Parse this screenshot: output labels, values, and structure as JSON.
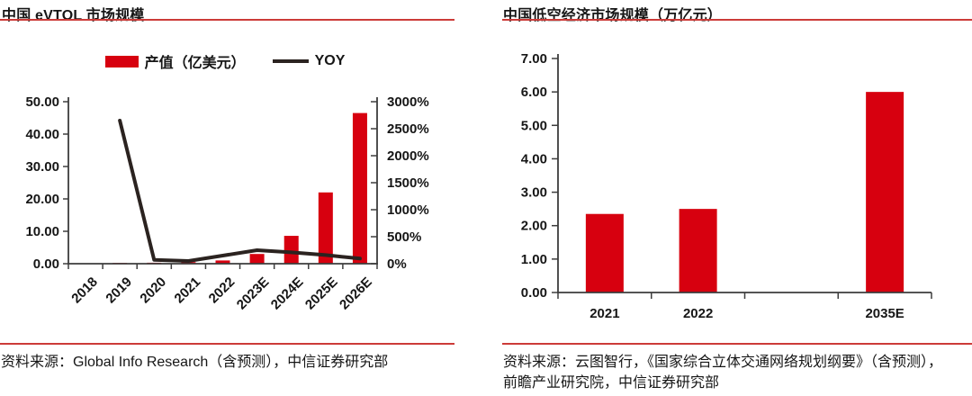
{
  "colors": {
    "bar_red": "#d7000f",
    "rule_red": "#cc3b38",
    "line_dark": "#2b2320",
    "axis_gray": "#3d3d3d",
    "text": "#161616"
  },
  "left_panel": {
    "title": "中国 eVTOL 市场规模",
    "legend": {
      "bar_label": "产值（亿美元）",
      "line_label": "YOY"
    },
    "source": "资料来源：Global Info Research（含预测），中信证券研究部"
  },
  "right_panel": {
    "title": "中国低空经济市场规模（万亿元）",
    "source_line1": "资料来源：云图智行，《国家综合立体交通网络规划纲要》（含预测），",
    "source_line2": "前瞻产业研究院，中信证券研究部"
  },
  "chart_data": [
    {
      "type": "bar",
      "subtype": "bar+line dual axis",
      "title": "中国 eVTOL 市场规模",
      "categories": [
        "2018",
        "2019",
        "2020",
        "2021",
        "2022",
        "2023E",
        "2024E",
        "2025E",
        "2026E"
      ],
      "series": [
        {
          "name": "产值（亿美元）",
          "type": "bar",
          "axis": "left",
          "values": [
            0,
            0.1,
            0.3,
            0.5,
            1.0,
            3.0,
            8.6,
            22.0,
            46.5
          ]
        },
        {
          "name": "YOY",
          "type": "line",
          "axis": "right",
          "unit": "%",
          "values": [
            null,
            2650,
            70,
            50,
            150,
            250,
            210,
            160,
            95
          ]
        }
      ],
      "left_axis": {
        "min": 0,
        "max": 50,
        "step": 10,
        "ticks": [
          "0.00",
          "10.00",
          "20.00",
          "30.00",
          "40.00",
          "50.00"
        ]
      },
      "right_axis": {
        "min": 0,
        "max": 3000,
        "step": 500,
        "ticks": [
          "0%",
          "500%",
          "1000%",
          "1500%",
          "2000%",
          "2500%",
          "3000%"
        ]
      },
      "legend_position": "top",
      "grid": false,
      "x_label_rotation": -45
    },
    {
      "type": "bar",
      "title": "中国低空经济市场规模（万亿元）",
      "categories": [
        "2021",
        "2022",
        "",
        "2035E"
      ],
      "values": [
        2.35,
        2.5,
        null,
        6.0
      ],
      "y_axis": {
        "min": 0,
        "max": 7,
        "step": 1,
        "ticks": [
          "0.00",
          "1.00",
          "2.00",
          "3.00",
          "4.00",
          "5.00",
          "6.00",
          "7.00"
        ]
      },
      "grid": false
    }
  ]
}
